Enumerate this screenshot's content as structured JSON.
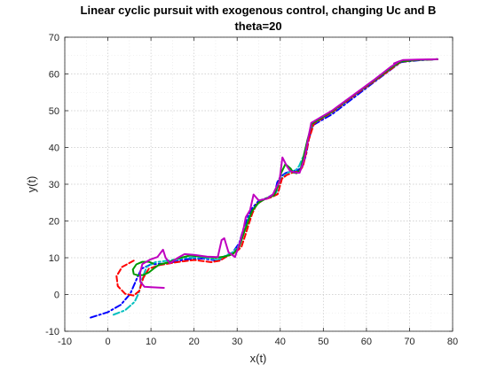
{
  "chart_data": {
    "type": "line",
    "title": "Linear cyclic pursuit with exogenous control, changing Uc and B",
    "subtitle": "theta=20",
    "xlabel": "x(t)",
    "ylabel": "y(t)",
    "xlim": [
      -10,
      80
    ],
    "ylim": [
      -10,
      70
    ],
    "xticks": [
      -10,
      0,
      10,
      20,
      30,
      40,
      50,
      60,
      70,
      80
    ],
    "yticks": [
      -10,
      0,
      10,
      20,
      30,
      40,
      50,
      60,
      70
    ],
    "grid": "dotted",
    "series": [
      {
        "color": "#0000ff",
        "style": "dashdot",
        "points": [
          [
            -4,
            -6.3
          ],
          [
            0,
            -4.8
          ],
          [
            3,
            -2.8
          ],
          [
            5.2,
            0.2
          ],
          [
            6.6,
            4
          ],
          [
            7.8,
            7
          ],
          [
            10,
            8.2
          ],
          [
            14,
            8.5
          ],
          [
            18,
            9.6
          ],
          [
            22,
            9.8
          ],
          [
            25.5,
            9.2
          ],
          [
            27,
            10.2
          ],
          [
            29,
            11.5
          ],
          [
            30.5,
            14
          ],
          [
            31.5,
            18
          ],
          [
            32.5,
            21
          ],
          [
            33.5,
            23.5
          ],
          [
            35,
            25.5
          ],
          [
            37,
            26.3
          ],
          [
            38.3,
            27.2
          ],
          [
            38.8,
            28
          ],
          [
            39.3,
            30.5
          ],
          [
            40,
            32
          ],
          [
            41.2,
            33
          ],
          [
            42.5,
            33.6
          ],
          [
            44,
            33.8
          ],
          [
            45,
            34.5
          ],
          [
            46,
            38
          ],
          [
            46.6,
            42
          ],
          [
            47.5,
            46
          ],
          [
            52,
            49
          ],
          [
            57,
            53.5
          ],
          [
            62,
            58
          ],
          [
            66,
            61.5
          ],
          [
            68,
            63.2
          ],
          [
            72,
            63.7
          ],
          [
            76.5,
            64
          ]
        ]
      },
      {
        "color": "#00bfbf",
        "style": "dashdot",
        "points": [
          [
            1.3,
            -5.5
          ],
          [
            4,
            -4.3
          ],
          [
            6.2,
            -2
          ],
          [
            7.2,
            0.5
          ],
          [
            8,
            4.5
          ],
          [
            9,
            7.5
          ],
          [
            11,
            8.8
          ],
          [
            14,
            9.2
          ],
          [
            18,
            10
          ],
          [
            22,
            10.1
          ],
          [
            25.5,
            9.4
          ],
          [
            27.2,
            10.5
          ],
          [
            29.2,
            11.6
          ],
          [
            30.8,
            14
          ],
          [
            31.8,
            17.8
          ],
          [
            32.8,
            21
          ],
          [
            34,
            23.6
          ],
          [
            35.5,
            25.5
          ],
          [
            37.5,
            26.4
          ],
          [
            38.8,
            27.2
          ],
          [
            39.5,
            29
          ],
          [
            40.2,
            31.5
          ],
          [
            41,
            32.5
          ],
          [
            42.2,
            33.4
          ],
          [
            43.6,
            33.8
          ],
          [
            44.4,
            35
          ],
          [
            45.5,
            38
          ],
          [
            46.3,
            42
          ],
          [
            47.5,
            46.4
          ],
          [
            52,
            49.5
          ],
          [
            57,
            54
          ],
          [
            62,
            58.3
          ],
          [
            66,
            61.8
          ],
          [
            68,
            63.4
          ],
          [
            72,
            63.8
          ],
          [
            76.5,
            64
          ]
        ]
      },
      {
        "color": "#ff0000",
        "style": "dashed",
        "points": [
          [
            6,
            9.2
          ],
          [
            3.3,
            7.5
          ],
          [
            2,
            5
          ],
          [
            2.3,
            2.3
          ],
          [
            4,
            0.2
          ],
          [
            6,
            -0.3
          ],
          [
            7.3,
            1
          ],
          [
            8.2,
            4.5
          ],
          [
            9.5,
            7
          ],
          [
            12,
            8
          ],
          [
            16,
            8.8
          ],
          [
            20,
            9.4
          ],
          [
            24,
            8.8
          ],
          [
            26,
            9.2
          ],
          [
            27.5,
            10.3
          ],
          [
            29.5,
            11.3
          ],
          [
            31,
            13
          ],
          [
            32,
            16.5
          ],
          [
            32.8,
            19.5
          ],
          [
            33.5,
            22
          ],
          [
            34.5,
            24.5
          ],
          [
            36,
            25.7
          ],
          [
            38,
            26.5
          ],
          [
            39.4,
            27.3
          ],
          [
            39.8,
            29
          ],
          [
            40.4,
            31.5
          ],
          [
            41.5,
            32.5
          ],
          [
            43,
            33.2
          ],
          [
            44.5,
            33.5
          ],
          [
            45.3,
            35
          ],
          [
            46,
            38.5
          ],
          [
            46.6,
            42
          ],
          [
            47.8,
            46.5
          ],
          [
            52,
            49.6
          ],
          [
            57,
            54
          ],
          [
            62,
            58.2
          ],
          [
            66,
            61.6
          ],
          [
            68,
            63.3
          ],
          [
            72,
            63.8
          ],
          [
            76.5,
            64
          ]
        ]
      },
      {
        "color": "#009900",
        "style": "solid",
        "points": [
          [
            10.5,
            8.4
          ],
          [
            9.5,
            8.9
          ],
          [
            8,
            8.9
          ],
          [
            6.6,
            8.2
          ],
          [
            5.8,
            6.8
          ],
          [
            6,
            5.6
          ],
          [
            7,
            5.2
          ],
          [
            8.2,
            5.3
          ],
          [
            9.5,
            6
          ],
          [
            10.8,
            7.2
          ],
          [
            12,
            8.2
          ],
          [
            14,
            8.7
          ],
          [
            16,
            9.7
          ],
          [
            19,
            10.6
          ],
          [
            22,
            10.3
          ],
          [
            25,
            10
          ],
          [
            27,
            10.3
          ],
          [
            29,
            11
          ],
          [
            30.5,
            13
          ],
          [
            31.5,
            16.5
          ],
          [
            32.5,
            19.8
          ],
          [
            33.5,
            22.8
          ],
          [
            35,
            25
          ],
          [
            36.8,
            26.2
          ],
          [
            38.6,
            27
          ],
          [
            39.4,
            29.5
          ],
          [
            40.2,
            33
          ],
          [
            41.2,
            35.5
          ],
          [
            42.4,
            34.3
          ],
          [
            43,
            33.2
          ],
          [
            43.8,
            33
          ],
          [
            44.7,
            34
          ],
          [
            45.5,
            38
          ],
          [
            46.2,
            41.5
          ],
          [
            47.3,
            46.4
          ],
          [
            52,
            49.8
          ],
          [
            57,
            54.2
          ],
          [
            62,
            58.4
          ],
          [
            66,
            61.9
          ],
          [
            68,
            63.4
          ],
          [
            72,
            63.8
          ],
          [
            76.5,
            64
          ]
        ]
      },
      {
        "color": "#bf00bf",
        "style": "solid",
        "points": [
          [
            13,
            1.8
          ],
          [
            10,
            2
          ],
          [
            8.5,
            2.1
          ],
          [
            7.5,
            3.5
          ],
          [
            7.5,
            6
          ],
          [
            8,
            8.3
          ],
          [
            9.8,
            9.5
          ],
          [
            11.5,
            10.2
          ],
          [
            12.8,
            12.2
          ],
          [
            13.4,
            10
          ],
          [
            14.4,
            8.5
          ],
          [
            16,
            9.8
          ],
          [
            17.8,
            11
          ],
          [
            20,
            10.8
          ],
          [
            23,
            10.3
          ],
          [
            25.5,
            10.2
          ],
          [
            26.4,
            14.8
          ],
          [
            27,
            15.3
          ],
          [
            28,
            11.5
          ],
          [
            29.5,
            10.2
          ],
          [
            30.6,
            14
          ],
          [
            31.5,
            18
          ],
          [
            32,
            21
          ],
          [
            33,
            23
          ],
          [
            33.8,
            27.2
          ],
          [
            35,
            25.6
          ],
          [
            37,
            26.1
          ],
          [
            38.3,
            27.2
          ],
          [
            38.8,
            28.5
          ],
          [
            39.8,
            30.8
          ],
          [
            40.5,
            37.3
          ],
          [
            41.5,
            35
          ],
          [
            42.3,
            33.6
          ],
          [
            43.4,
            33.2
          ],
          [
            44.5,
            33.1
          ],
          [
            45.6,
            37
          ],
          [
            46.4,
            42
          ],
          [
            47.2,
            46.7
          ],
          [
            52,
            50
          ],
          [
            57,
            54.3
          ],
          [
            62,
            58.6
          ],
          [
            65.5,
            61.8
          ],
          [
            67.5,
            63.4
          ],
          [
            66.4,
            62.9
          ],
          [
            68.5,
            63.8
          ],
          [
            72,
            63.9
          ],
          [
            76.5,
            64
          ]
        ]
      }
    ]
  }
}
